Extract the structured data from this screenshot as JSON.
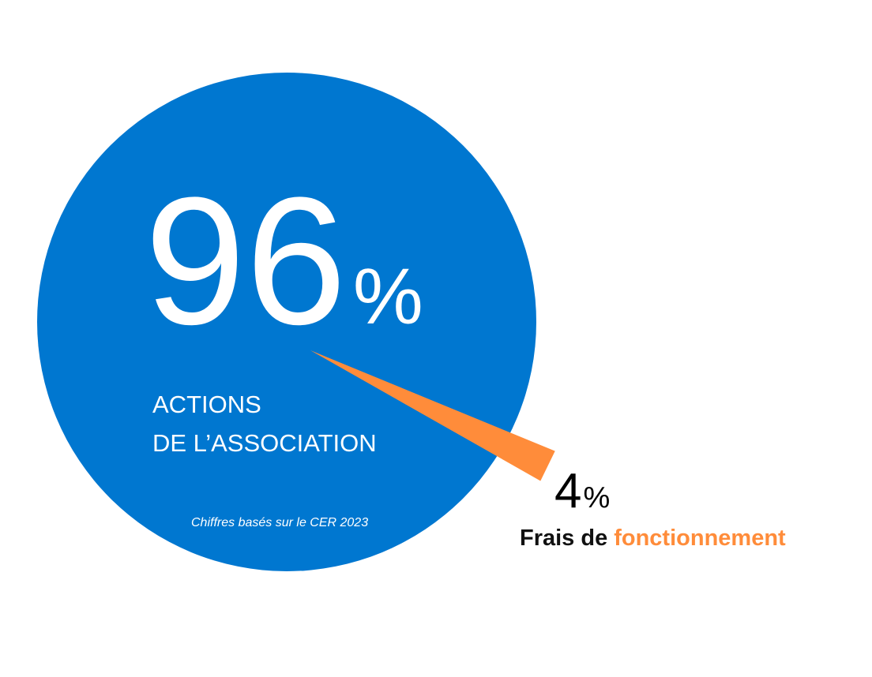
{
  "chart_data": {
    "type": "pie",
    "categories": [
      [
        "ACTIONS",
        "DE L’ASSOCIATION"
      ],
      [
        "Frais de",
        "fonctionnement"
      ]
    ],
    "values": [
      96,
      4
    ],
    "unit": "%",
    "colors": [
      "#0077d0",
      "#ff8c3a"
    ],
    "note": "Chiffres basés sur le CER 2023"
  }
}
